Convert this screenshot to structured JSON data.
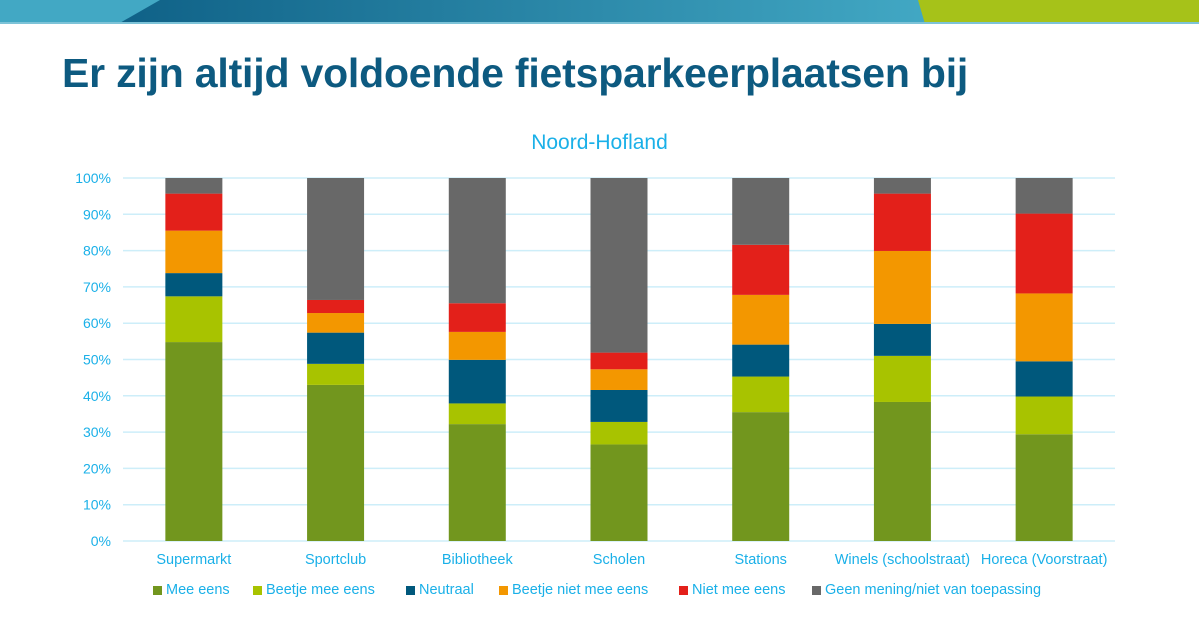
{
  "header": {
    "title": "Er zijn altijd voldoende fietsparkeerplaatsen bij",
    "banner_colors": {
      "light": "#3fa7c4",
      "dark": "#0f6187",
      "accent": "#a6c219"
    }
  },
  "chart_data": {
    "type": "bar",
    "stacked": true,
    "percent": true,
    "title": "Noord-Hofland",
    "xlabel": "",
    "ylabel": "",
    "ylim": [
      0,
      100
    ],
    "yticks": [
      "0%",
      "10%",
      "20%",
      "30%",
      "40%",
      "50%",
      "60%",
      "70%",
      "80%",
      "90%",
      "100%"
    ],
    "grid": true,
    "legend_position": "bottom",
    "categories": [
      "Supermarkt",
      "Sportclub",
      "Bibliotheek",
      "Scholen",
      "Stations",
      "Winels (schoolstraat)",
      "Horeca (Voorstraat)"
    ],
    "series": [
      {
        "name": "Mee eens",
        "color": "#72961e",
        "values": [
          54.8,
          43.0,
          32.2,
          26.6,
          35.5,
          38.3,
          29.4
        ]
      },
      {
        "name": "Beetje mee eens",
        "color": "#a8c300",
        "values": [
          12.6,
          5.8,
          5.7,
          6.2,
          9.8,
          12.7,
          10.4
        ]
      },
      {
        "name": "Neutraal",
        "color": "#00587c",
        "values": [
          6.4,
          8.6,
          12.0,
          8.8,
          8.8,
          8.8,
          9.7
        ]
      },
      {
        "name": "Beetje niet mee eens",
        "color": "#f39700",
        "values": [
          11.7,
          5.4,
          7.7,
          5.7,
          13.7,
          20.1,
          18.7
        ]
      },
      {
        "name": "Niet mee eens",
        "color": "#e3201a",
        "values": [
          10.2,
          3.6,
          7.9,
          4.6,
          13.8,
          15.8,
          22.0
        ]
      },
      {
        "name": "Geen mening/niet van toepassing",
        "color": "#686868",
        "values": [
          4.3,
          33.6,
          34.5,
          48.1,
          18.4,
          4.3,
          9.8
        ]
      }
    ]
  }
}
